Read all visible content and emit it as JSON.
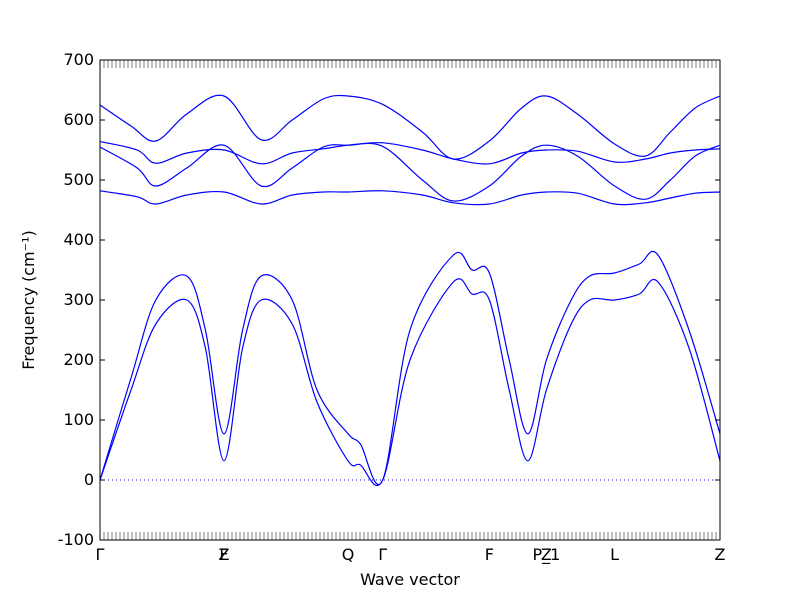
{
  "chart_data": {
    "type": "line",
    "xlabel": "Wave vector",
    "ylabel": "Frequency (cm⁻¹)",
    "ylim": [
      -100,
      700
    ],
    "yticks": [
      -100,
      0,
      100,
      200,
      300,
      400,
      500,
      600,
      700
    ],
    "grid": false,
    "line_color": "#0000ff",
    "zero_line_color": "#0000ff",
    "high_symmetry_points": [
      {
        "label": "Γ",
        "x": 0.0
      },
      {
        "label": "Z",
        "x": 1.0
      },
      {
        "label": "F",
        "x": 1.0
      },
      {
        "label": "Q",
        "x": 2.0
      },
      {
        "label": "Γ",
        "x": 2.28
      },
      {
        "label": "F",
        "x": 3.14
      },
      {
        "label": "P_1",
        "x": 3.6
      },
      {
        "label": "Z",
        "x": 3.6
      },
      {
        "label": "L",
        "x": 4.15
      },
      {
        "label": "Z",
        "x": 5.0
      }
    ],
    "xlim": [
      0,
      5.0
    ],
    "series": [
      {
        "x": [
          0.0,
          0.25,
          0.45,
          0.7,
          0.85,
          1.0,
          1.15,
          1.3,
          1.55,
          1.75,
          2.0,
          2.1,
          2.28,
          2.5,
          2.85,
          3.0,
          3.14,
          3.3,
          3.45,
          3.6,
          3.8,
          3.95,
          4.15,
          4.35,
          4.5,
          4.75,
          5.0
        ],
        "y": [
          0,
          150,
          260,
          300,
          220,
          32,
          220,
          300,
          260,
          130,
          32,
          25,
          0,
          200,
          330,
          310,
          300,
          150,
          32,
          150,
          260,
          300,
          300,
          310,
          330,
          220,
          32
        ]
      },
      {
        "x": [
          0.0,
          0.25,
          0.45,
          0.7,
          0.85,
          1.0,
          1.15,
          1.3,
          1.55,
          1.75,
          2.0,
          2.1,
          2.28,
          2.5,
          2.85,
          3.0,
          3.14,
          3.3,
          3.45,
          3.6,
          3.8,
          3.95,
          4.15,
          4.35,
          4.5,
          4.75,
          5.0
        ],
        "y": [
          0,
          170,
          300,
          340,
          250,
          77,
          250,
          340,
          300,
          150,
          77,
          60,
          0,
          250,
          375,
          350,
          345,
          200,
          77,
          200,
          300,
          340,
          345,
          360,
          375,
          250,
          77
        ]
      },
      {
        "x": [
          0.0,
          0.3,
          0.45,
          0.7,
          1.0,
          1.3,
          1.55,
          1.8,
          2.0,
          2.28,
          2.6,
          2.85,
          3.14,
          3.4,
          3.6,
          3.85,
          4.15,
          4.4,
          4.6,
          4.8,
          5.0
        ],
        "y": [
          482,
          472,
          460,
          475,
          480,
          460,
          475,
          480,
          480,
          482,
          475,
          462,
          460,
          475,
          480,
          478,
          460,
          462,
          470,
          478,
          480
        ]
      },
      {
        "x": [
          0.0,
          0.3,
          0.45,
          0.7,
          1.0,
          1.3,
          1.55,
          1.8,
          2.0,
          2.28,
          2.6,
          2.85,
          3.14,
          3.4,
          3.6,
          3.85,
          4.15,
          4.4,
          4.6,
          4.8,
          5.0
        ],
        "y": [
          555,
          520,
          490,
          520,
          558,
          490,
          520,
          555,
          558,
          556,
          500,
          465,
          490,
          540,
          558,
          540,
          490,
          468,
          500,
          540,
          558
        ]
      },
      {
        "x": [
          0.0,
          0.3,
          0.45,
          0.7,
          1.0,
          1.3,
          1.55,
          1.8,
          2.0,
          2.28,
          2.6,
          2.85,
          3.14,
          3.4,
          3.6,
          3.85,
          4.15,
          4.4,
          4.6,
          4.8,
          5.0
        ],
        "y": [
          564,
          550,
          528,
          545,
          550,
          527,
          545,
          552,
          558,
          562,
          550,
          535,
          527,
          545,
          550,
          548,
          530,
          535,
          545,
          550,
          552
        ]
      },
      {
        "x": [
          0.0,
          0.25,
          0.45,
          0.7,
          1.0,
          1.3,
          1.55,
          1.8,
          2.0,
          2.28,
          2.6,
          2.85,
          3.14,
          3.4,
          3.6,
          3.85,
          4.15,
          4.4,
          4.6,
          4.8,
          5.0
        ],
        "y": [
          625,
          590,
          565,
          610,
          640,
          567,
          600,
          635,
          640,
          626,
          580,
          535,
          565,
          620,
          640,
          610,
          560,
          540,
          580,
          620,
          640
        ]
      }
    ]
  }
}
